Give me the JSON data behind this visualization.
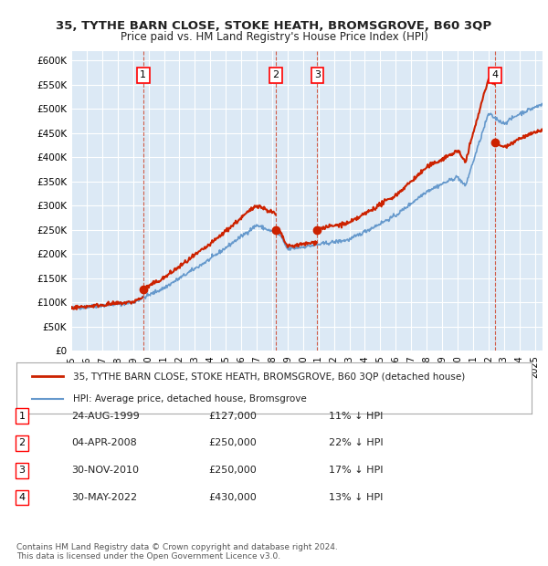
{
  "title": "35, TYTHE BARN CLOSE, STOKE HEATH, BROMSGROVE, B60 3QP",
  "subtitle": "Price paid vs. HM Land Registry's House Price Index (HPI)",
  "ylabel_ticks": [
    "£0",
    "£50K",
    "£100K",
    "£150K",
    "£200K",
    "£250K",
    "£300K",
    "£350K",
    "£400K",
    "£450K",
    "£500K",
    "£550K",
    "£600K"
  ],
  "ytick_values": [
    0,
    50000,
    100000,
    150000,
    200000,
    250000,
    300000,
    350000,
    400000,
    450000,
    500000,
    550000,
    600000
  ],
  "ylim": [
    0,
    620000
  ],
  "xlim_start": 1995.0,
  "xlim_end": 2025.5,
  "bg_color": "#dce9f5",
  "plot_bg_color": "#dce9f5",
  "hpi_line_color": "#6699cc",
  "price_line_color": "#cc2200",
  "sale_marker_color": "#cc2200",
  "vline_color": "#cc2200",
  "transactions": [
    {
      "num": 1,
      "date_x": 1999.65,
      "price": 127000,
      "label": "24-AUG-1999",
      "price_str": "£127,000",
      "pct": "11% ↓ HPI"
    },
    {
      "num": 2,
      "date_x": 2008.25,
      "price": 250000,
      "label": "04-APR-2008",
      "price_str": "£250,000",
      "pct": "22% ↓ HPI"
    },
    {
      "num": 3,
      "date_x": 2010.92,
      "price": 250000,
      "label": "30-NOV-2010",
      "price_str": "£250,000",
      "pct": "17% ↓ HPI"
    },
    {
      "num": 4,
      "date_x": 2022.41,
      "price": 430000,
      "label": "30-MAY-2022",
      "price_str": "£430,000",
      "pct": "13% ↓ HPI"
    }
  ],
  "legend_entries": [
    {
      "label": "35, TYTHE BARN CLOSE, STOKE HEATH, BROMSGROVE, B60 3QP (detached house)",
      "color": "#cc2200",
      "lw": 2
    },
    {
      "label": "HPI: Average price, detached house, Bromsgrove",
      "color": "#6699cc",
      "lw": 1.5
    }
  ],
  "footer1": "Contains HM Land Registry data © Crown copyright and database right 2024.",
  "footer2": "This data is licensed under the Open Government Licence v3.0.",
  "table_rows": [
    [
      "1",
      "24-AUG-1999",
      "£127,000",
      "11% ↓ HPI"
    ],
    [
      "2",
      "04-APR-2008",
      "£250,000",
      "22% ↓ HPI"
    ],
    [
      "3",
      "30-NOV-2010",
      "£250,000",
      "17% ↓ HPI"
    ],
    [
      "4",
      "30-MAY-2022",
      "£430,000",
      "13% ↓ HPI"
    ]
  ]
}
